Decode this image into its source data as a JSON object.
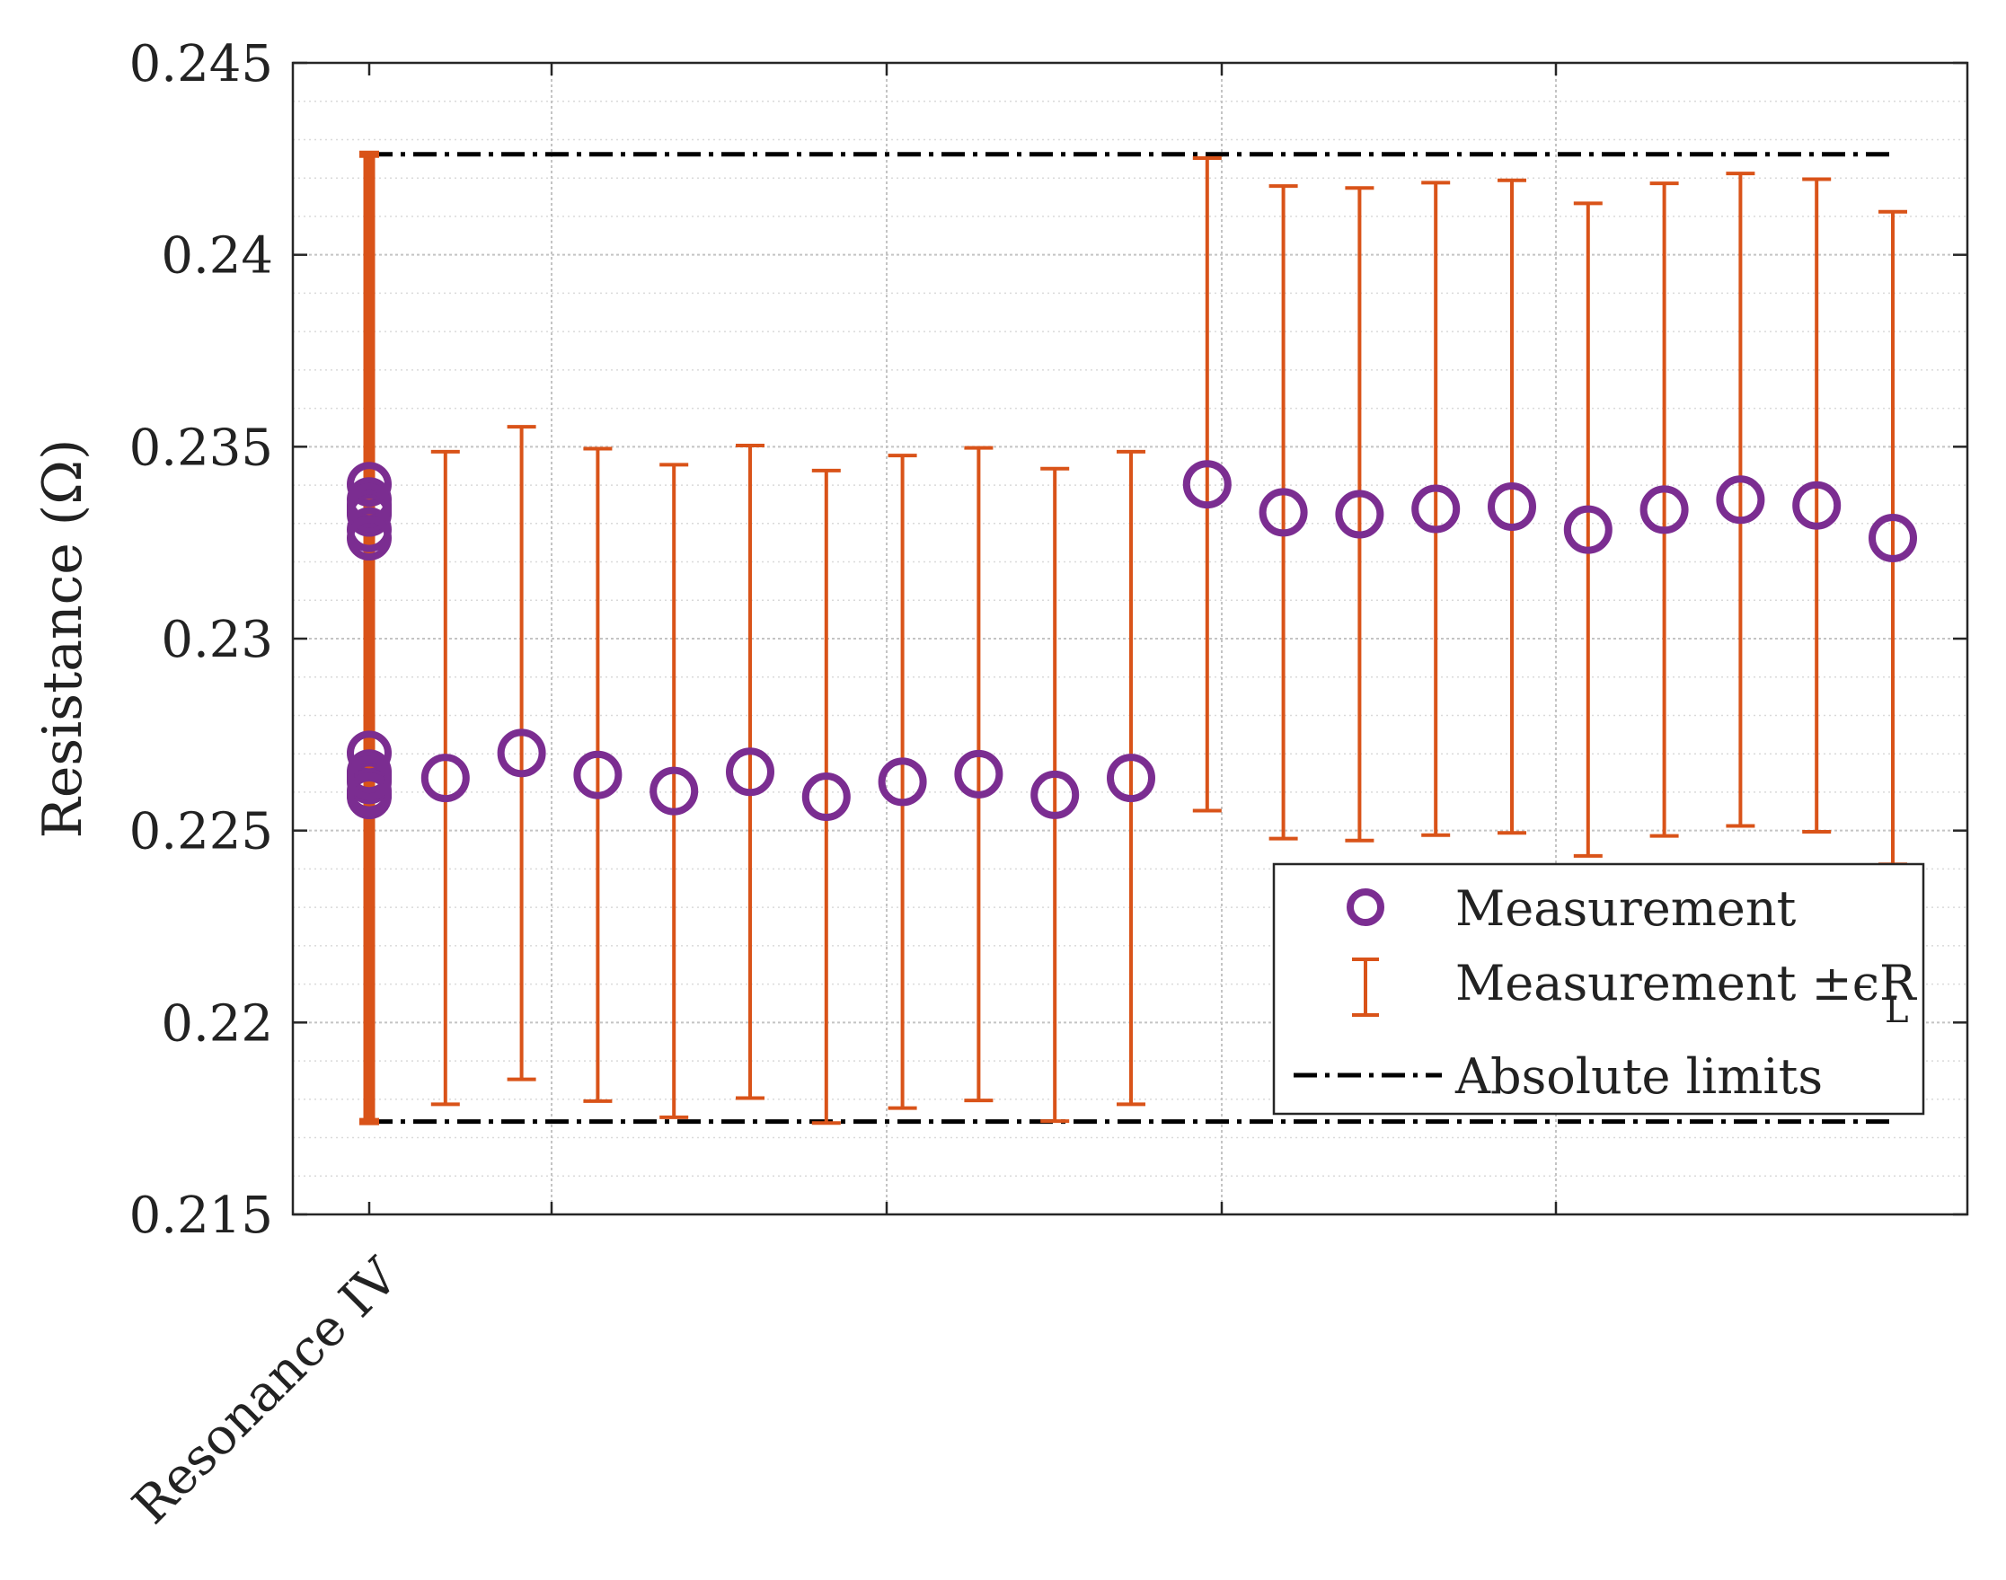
{
  "chart_data": {
    "type": "scatter",
    "title": "",
    "xlabel": "",
    "ylabel": "Resistance (Ω)",
    "ylim": [
      0.215,
      0.245
    ],
    "yticks": [
      "0.215",
      "0.22",
      "0.225",
      "0.23",
      "0.235",
      "0.24",
      "0.245"
    ],
    "xtick_labels": [
      "Resonance IV"
    ],
    "grid": true,
    "legend_position": "lower-right",
    "legend": {
      "measurement": "Measurement",
      "errorbar_prefix": "Measurement ±ϵR",
      "errorbar_subscript": "L",
      "limits": "Absolute limits"
    },
    "absolute_limits": {
      "upper": 0.24262,
      "lower": 0.21742
    },
    "measurement_x": [
      1,
      2,
      3,
      4,
      5,
      6,
      7,
      8,
      9,
      10,
      11,
      12,
      13,
      14,
      15,
      16,
      17,
      18,
      19,
      20
    ],
    "measurement_values": [
      0.22637,
      0.22702,
      0.22645,
      0.22603,
      0.22653,
      0.22588,
      0.22627,
      0.22647,
      0.22593,
      0.22637,
      0.23402,
      0.23329,
      0.23324,
      0.23338,
      0.23344,
      0.23284,
      0.23336,
      0.23362,
      0.23347,
      0.23262
    ],
    "error_lower": [
      0.21787,
      0.21852,
      0.21795,
      0.21753,
      0.21803,
      0.21738,
      0.21777,
      0.21797,
      0.21743,
      0.21787,
      0.22552,
      0.22479,
      0.22474,
      0.22488,
      0.22494,
      0.22434,
      0.22486,
      0.22512,
      0.22497,
      0.22412
    ],
    "error_upper": [
      0.23487,
      0.23552,
      0.23495,
      0.23453,
      0.23503,
      0.23438,
      0.23477,
      0.23497,
      0.23443,
      0.23487,
      0.24252,
      0.24179,
      0.24174,
      0.24188,
      0.24194,
      0.24134,
      0.24186,
      0.24212,
      0.24197,
      0.24112
    ],
    "resonance_IV_values": [
      0.22637,
      0.22702,
      0.22645,
      0.22603,
      0.22653,
      0.22588,
      0.22627,
      0.22647,
      0.22593,
      0.22637,
      0.23402,
      0.23329,
      0.23324,
      0.23338,
      0.23344,
      0.23284,
      0.23336,
      0.23362,
      0.23347,
      0.23262
    ],
    "resonance_IV_error": {
      "lower": 0.21742,
      "upper": 0.24262
    }
  },
  "colors": {
    "measurement": "#7B2D91",
    "errorbar": "#D95319",
    "limits": "#000000",
    "grid": "#BDBDBD",
    "axis": "#262626"
  }
}
